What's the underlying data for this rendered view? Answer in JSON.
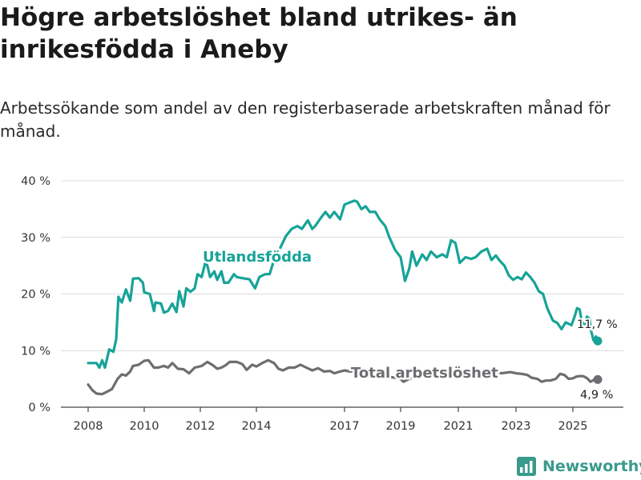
{
  "title": "Högre arbetslöshet bland utrikes- än inrikesfödda i Aneby",
  "subtitle": "Arbetssökande som andel av den registerbaserade arbetskraften månad för månad.",
  "brand": {
    "name": "Newsworthy",
    "color": "#3a9a8c",
    "icon": "bar-chart-logo-icon"
  },
  "chart_data": {
    "type": "line",
    "ylim": [
      0,
      40
    ],
    "yticks": [
      0,
      10,
      20,
      30,
      40
    ],
    "ytick_labels": [
      "0 %",
      "10 %",
      "20 %",
      "30 %",
      "40 %"
    ],
    "xlim": [
      2007.7,
      2026.5
    ],
    "xticks": [
      2008,
      2010,
      2012,
      2014,
      2017,
      2019,
      2021,
      2023,
      2025
    ],
    "xtick_labels": [
      "2008",
      "2010",
      "2012",
      "2014",
      "2017",
      "2019",
      "2021",
      "2023",
      "2025"
    ],
    "grid": true,
    "series": [
      {
        "name": "Utlandsfödda",
        "color": "#17a398",
        "end_label": "11,7 %",
        "points": [
          [
            2008.0,
            7.8
          ],
          [
            2008.3,
            7.8
          ],
          [
            2008.4,
            7.0
          ],
          [
            2008.5,
            8.3
          ],
          [
            2008.6,
            7.0
          ],
          [
            2008.75,
            10.2
          ],
          [
            2008.9,
            9.8
          ],
          [
            2009.0,
            12.0
          ],
          [
            2009.08,
            19.5
          ],
          [
            2009.2,
            18.5
          ],
          [
            2009.35,
            20.8
          ],
          [
            2009.5,
            18.8
          ],
          [
            2009.6,
            22.7
          ],
          [
            2009.8,
            22.8
          ],
          [
            2009.95,
            22.0
          ],
          [
            2010.0,
            20.3
          ],
          [
            2010.2,
            20.0
          ],
          [
            2010.35,
            17.0
          ],
          [
            2010.4,
            18.5
          ],
          [
            2010.6,
            18.3
          ],
          [
            2010.7,
            16.7
          ],
          [
            2010.85,
            17.0
          ],
          [
            2011.0,
            18.3
          ],
          [
            2011.15,
            16.8
          ],
          [
            2011.25,
            20.5
          ],
          [
            2011.4,
            17.8
          ],
          [
            2011.5,
            21.0
          ],
          [
            2011.65,
            20.4
          ],
          [
            2011.8,
            21.0
          ],
          [
            2011.9,
            23.5
          ],
          [
            2012.05,
            23.0
          ],
          [
            2012.2,
            26.0
          ],
          [
            2012.35,
            23.0
          ],
          [
            2012.5,
            24.0
          ],
          [
            2012.6,
            22.5
          ],
          [
            2012.75,
            24.0
          ],
          [
            2012.85,
            22.0
          ],
          [
            2013.0,
            22.0
          ],
          [
            2013.2,
            23.5
          ],
          [
            2013.3,
            23.0
          ],
          [
            2013.5,
            22.8
          ],
          [
            2013.75,
            22.6
          ],
          [
            2013.95,
            21.0
          ],
          [
            2014.1,
            23.0
          ],
          [
            2014.3,
            23.5
          ],
          [
            2014.45,
            23.5
          ],
          [
            2014.6,
            26.0
          ],
          [
            2014.8,
            28.0
          ],
          [
            2015.0,
            30.2
          ],
          [
            2015.2,
            31.5
          ],
          [
            2015.4,
            32.0
          ],
          [
            2015.55,
            31.5
          ],
          [
            2015.75,
            33.0
          ],
          [
            2015.9,
            31.5
          ],
          [
            2016.0,
            32.0
          ],
          [
            2016.2,
            33.5
          ],
          [
            2016.35,
            34.5
          ],
          [
            2016.5,
            33.5
          ],
          [
            2016.65,
            34.5
          ],
          [
            2016.85,
            33.2
          ],
          [
            2017.0,
            35.8
          ],
          [
            2017.2,
            36.2
          ],
          [
            2017.35,
            36.5
          ],
          [
            2017.45,
            36.3
          ],
          [
            2017.6,
            35.0
          ],
          [
            2017.75,
            35.5
          ],
          [
            2017.9,
            34.5
          ],
          [
            2018.1,
            34.5
          ],
          [
            2018.25,
            33.2
          ],
          [
            2018.45,
            32.0
          ],
          [
            2018.6,
            30.0
          ],
          [
            2018.8,
            27.8
          ],
          [
            2019.0,
            26.5
          ],
          [
            2019.15,
            22.3
          ],
          [
            2019.3,
            24.5
          ],
          [
            2019.4,
            27.5
          ],
          [
            2019.55,
            25.0
          ],
          [
            2019.75,
            27.0
          ],
          [
            2019.9,
            26.0
          ],
          [
            2020.05,
            27.5
          ],
          [
            2020.25,
            26.5
          ],
          [
            2020.45,
            27.0
          ],
          [
            2020.6,
            26.5
          ],
          [
            2020.75,
            29.5
          ],
          [
            2020.9,
            29.0
          ],
          [
            2021.05,
            25.5
          ],
          [
            2021.25,
            26.5
          ],
          [
            2021.45,
            26.2
          ],
          [
            2021.6,
            26.5
          ],
          [
            2021.8,
            27.5
          ],
          [
            2022.0,
            28.0
          ],
          [
            2022.15,
            26.0
          ],
          [
            2022.3,
            26.8
          ],
          [
            2022.45,
            25.8
          ],
          [
            2022.6,
            25.0
          ],
          [
            2022.75,
            23.3
          ],
          [
            2022.9,
            22.5
          ],
          [
            2023.05,
            23.0
          ],
          [
            2023.2,
            22.6
          ],
          [
            2023.35,
            23.8
          ],
          [
            2023.5,
            23.0
          ],
          [
            2023.65,
            22.0
          ],
          [
            2023.8,
            20.5
          ],
          [
            2023.95,
            20.0
          ],
          [
            2024.1,
            17.5
          ],
          [
            2024.3,
            15.3
          ],
          [
            2024.45,
            14.9
          ],
          [
            2024.6,
            13.8
          ],
          [
            2024.75,
            15.0
          ],
          [
            2024.95,
            14.5
          ],
          [
            2025.1,
            16.0
          ],
          [
            2025.25,
            17.5
          ],
          [
            2025.4,
            17.3
          ],
          [
            2025.55,
            15.0
          ],
          [
            2025.7,
            14.7
          ],
          [
            2025.85,
            16.0
          ],
          [
            2026.0,
            15.6
          ],
          [
            2026.1,
            13.5
          ],
          [
            2026.25,
            11.8
          ],
          [
            2026.4,
            12.5
          ],
          [
            2026.5,
            11.7
          ]
        ]
      },
      {
        "name": "Total arbetslöshet",
        "color": "#6e6e72",
        "end_label": "4,9 %",
        "points": [
          [
            2008.0,
            4.0
          ],
          [
            2008.15,
            3.0
          ],
          [
            2008.3,
            2.4
          ],
          [
            2008.5,
            2.3
          ],
          [
            2008.7,
            2.8
          ],
          [
            2008.85,
            3.2
          ],
          [
            2009.05,
            5.0
          ],
          [
            2009.2,
            5.8
          ],
          [
            2009.35,
            5.6
          ],
          [
            2009.5,
            6.3
          ],
          [
            2009.6,
            7.3
          ],
          [
            2009.8,
            7.5
          ],
          [
            2010.0,
            8.2
          ],
          [
            2010.15,
            8.3
          ],
          [
            2010.35,
            7.0
          ],
          [
            2010.5,
            7.0
          ],
          [
            2010.7,
            7.3
          ],
          [
            2010.85,
            7.0
          ],
          [
            2011.0,
            7.8
          ],
          [
            2011.2,
            6.8
          ],
          [
            2011.4,
            6.7
          ],
          [
            2011.6,
            6.0
          ],
          [
            2011.8,
            7.0
          ],
          [
            2012.05,
            7.3
          ],
          [
            2012.25,
            8.0
          ],
          [
            2012.45,
            7.4
          ],
          [
            2012.6,
            6.8
          ],
          [
            2012.75,
            7.0
          ],
          [
            2012.9,
            7.4
          ],
          [
            2013.05,
            8.0
          ],
          [
            2013.3,
            8.0
          ],
          [
            2013.5,
            7.6
          ],
          [
            2013.65,
            6.6
          ],
          [
            2013.85,
            7.5
          ],
          [
            2014.0,
            7.2
          ],
          [
            2014.2,
            7.8
          ],
          [
            2014.4,
            8.3
          ],
          [
            2014.6,
            7.8
          ],
          [
            2014.75,
            6.8
          ],
          [
            2014.9,
            6.5
          ],
          [
            2015.1,
            7.0
          ],
          [
            2015.3,
            7.0
          ],
          [
            2015.5,
            7.5
          ],
          [
            2015.7,
            7.0
          ],
          [
            2015.9,
            6.5
          ],
          [
            2016.1,
            6.9
          ],
          [
            2016.3,
            6.3
          ],
          [
            2016.5,
            6.4
          ],
          [
            2016.65,
            6.0
          ],
          [
            2016.85,
            6.3
          ],
          [
            2017.0,
            6.5
          ],
          [
            2017.2,
            6.3
          ],
          [
            2017.4,
            6.5
          ],
          [
            2017.6,
            6.3
          ],
          [
            2017.8,
            6.1
          ],
          [
            2018.0,
            6.0
          ],
          [
            2018.3,
            5.8
          ],
          [
            2018.55,
            5.4
          ],
          [
            2018.8,
            5.2
          ],
          [
            2019.0,
            5.0
          ],
          [
            2019.1,
            4.5
          ],
          [
            2019.3,
            5.0
          ],
          [
            2019.6,
            5.3
          ],
          [
            2019.9,
            5.5
          ],
          [
            2020.2,
            5.8
          ],
          [
            2020.5,
            6.0
          ],
          [
            2020.8,
            6.3
          ],
          [
            2021.0,
            6.2
          ],
          [
            2021.3,
            6.0
          ],
          [
            2021.6,
            5.8
          ],
          [
            2021.9,
            6.0
          ],
          [
            2022.2,
            6.2
          ],
          [
            2022.5,
            6.0
          ],
          [
            2022.8,
            6.2
          ],
          [
            2023.0,
            6.0
          ],
          [
            2023.2,
            5.9
          ],
          [
            2023.4,
            5.7
          ],
          [
            2023.55,
            5.2
          ],
          [
            2023.75,
            5.0
          ],
          [
            2023.9,
            4.5
          ],
          [
            2024.05,
            4.7
          ],
          [
            2024.2,
            4.7
          ],
          [
            2024.4,
            5.0
          ],
          [
            2024.55,
            5.9
          ],
          [
            2024.7,
            5.7
          ],
          [
            2024.85,
            5.0
          ],
          [
            2025.0,
            5.1
          ],
          [
            2025.2,
            5.4
          ],
          [
            2025.4,
            5.5
          ],
          [
            2025.6,
            5.5
          ],
          [
            2025.75,
            5.3
          ],
          [
            2025.9,
            5.0
          ],
          [
            2026.05,
            4.5
          ],
          [
            2026.2,
            4.7
          ],
          [
            2026.35,
            5.0
          ],
          [
            2026.5,
            4.9
          ]
        ]
      }
    ]
  }
}
